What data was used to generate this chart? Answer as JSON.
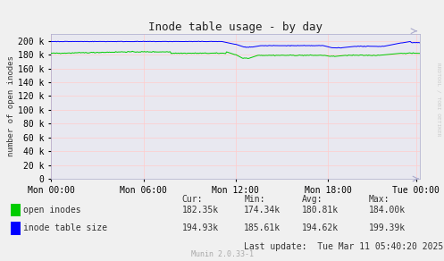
{
  "title": "Inode table usage - by day",
  "ylabel": "number of open inodes",
  "background_color": "#f0f0f0",
  "plot_bg_color": "#e8e8f0",
  "grid_color_h": "#ffcccc",
  "grid_color_v": "#ffcccc",
  "border_color": "#aaaacc",
  "ylim": [
    0,
    210000
  ],
  "yticks": [
    0,
    20000,
    40000,
    60000,
    80000,
    100000,
    120000,
    140000,
    160000,
    180000,
    200000
  ],
  "ytick_labels": [
    "0",
    "20 k",
    "40 k",
    "60 k",
    "80 k",
    "100 k",
    "120 k",
    "140 k",
    "160 k",
    "180 k",
    "200 k"
  ],
  "xtick_labels": [
    "Mon 00:00",
    "Mon 06:00",
    "Mon 12:00",
    "Mon 18:00",
    "Tue 00:00"
  ],
  "open_inodes_color": "#00cc00",
  "inode_table_color": "#0000ff",
  "legend_labels": [
    "open inodes",
    "inode table size"
  ],
  "stats_cur": [
    "182.35k",
    "194.93k"
  ],
  "stats_min": [
    "174.34k",
    "185.61k"
  ],
  "stats_avg": [
    "180.81k",
    "194.62k"
  ],
  "stats_max": [
    "184.00k",
    "199.39k"
  ],
  "last_update": "Last update:  Tue Mar 11 05:40:20 2025",
  "munin_version": "Munin 2.0.33-1",
  "watermark": "RRDTOOL / TOBI OETIKER"
}
